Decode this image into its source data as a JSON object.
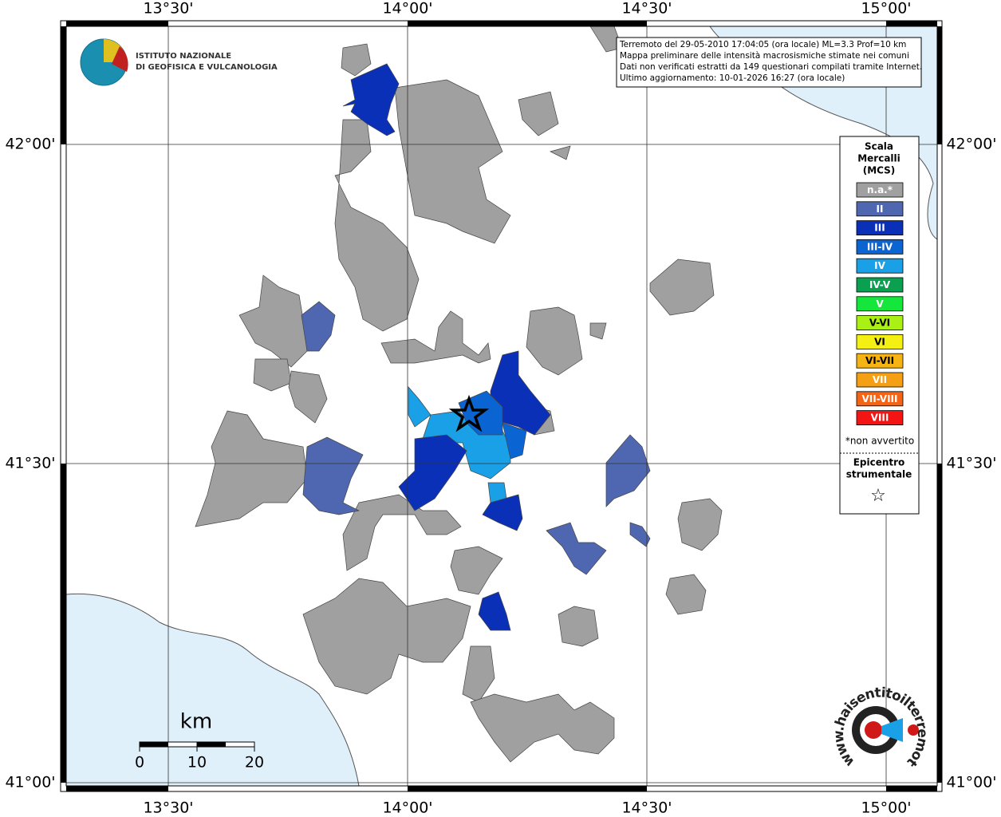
{
  "header": {
    "institute": [
      "ISTITUTO NAZIONALE",
      "DI GEOFISICA E VULCANOLOGIA"
    ],
    "info": [
      "Terremoto del 29-05-2010 17:04:05 (ora locale) ML=3.3 Prof=10 km",
      "Mappa preliminare delle intensità macrosismiche stimate nei comuni",
      "Dati non verificati estratti da 149 questionari compilati tramite Internet.",
      "Ultimo aggiornamento: 10-01-2026 16:27 (ora locale)"
    ]
  },
  "grid": {
    "lon": [
      {
        "value": 13.5,
        "label": "13°30'"
      },
      {
        "value": 14.0,
        "label": "14°00'"
      },
      {
        "value": 14.5,
        "label": "14°30'"
      },
      {
        "value": 15.0,
        "label": "15°00'"
      }
    ],
    "lat": [
      {
        "value": 42.0,
        "label": "42°00'"
      },
      {
        "value": 41.5,
        "label": "41°30'"
      },
      {
        "value": 41.0,
        "label": "41°00'"
      }
    ]
  },
  "legend": {
    "title": [
      "Scala",
      "Mercalli",
      "(MCS)"
    ],
    "items": [
      {
        "label": "n.a.*",
        "color": "#a0a0a0"
      },
      {
        "label": "II",
        "color": "#4f67b0"
      },
      {
        "label": "III",
        "color": "#0a30b8"
      },
      {
        "label": "III-IV",
        "color": "#0a64d2"
      },
      {
        "label": "IV",
        "color": "#1aa0e6"
      },
      {
        "label": "IV-V",
        "color": "#0aa050"
      },
      {
        "label": "V",
        "color": "#14e63c"
      },
      {
        "label": "V-VI",
        "color": "#aaf014"
      },
      {
        "label": "VI",
        "color": "#f5f014"
      },
      {
        "label": "VI-VII",
        "color": "#f5b414"
      },
      {
        "label": "VII",
        "color": "#f5a014"
      },
      {
        "label": "VII-VIII",
        "color": "#f56414"
      },
      {
        "label": "VIII",
        "color": "#f51414"
      }
    ],
    "note": "*non avvertito",
    "epicenter": [
      "Epicentro",
      "strumentale"
    ],
    "star": "☆"
  },
  "scale_bar": {
    "unit": "km",
    "ticks": [
      0,
      10,
      20
    ]
  },
  "logo": "www.haisentitoilterremoto.it"
}
